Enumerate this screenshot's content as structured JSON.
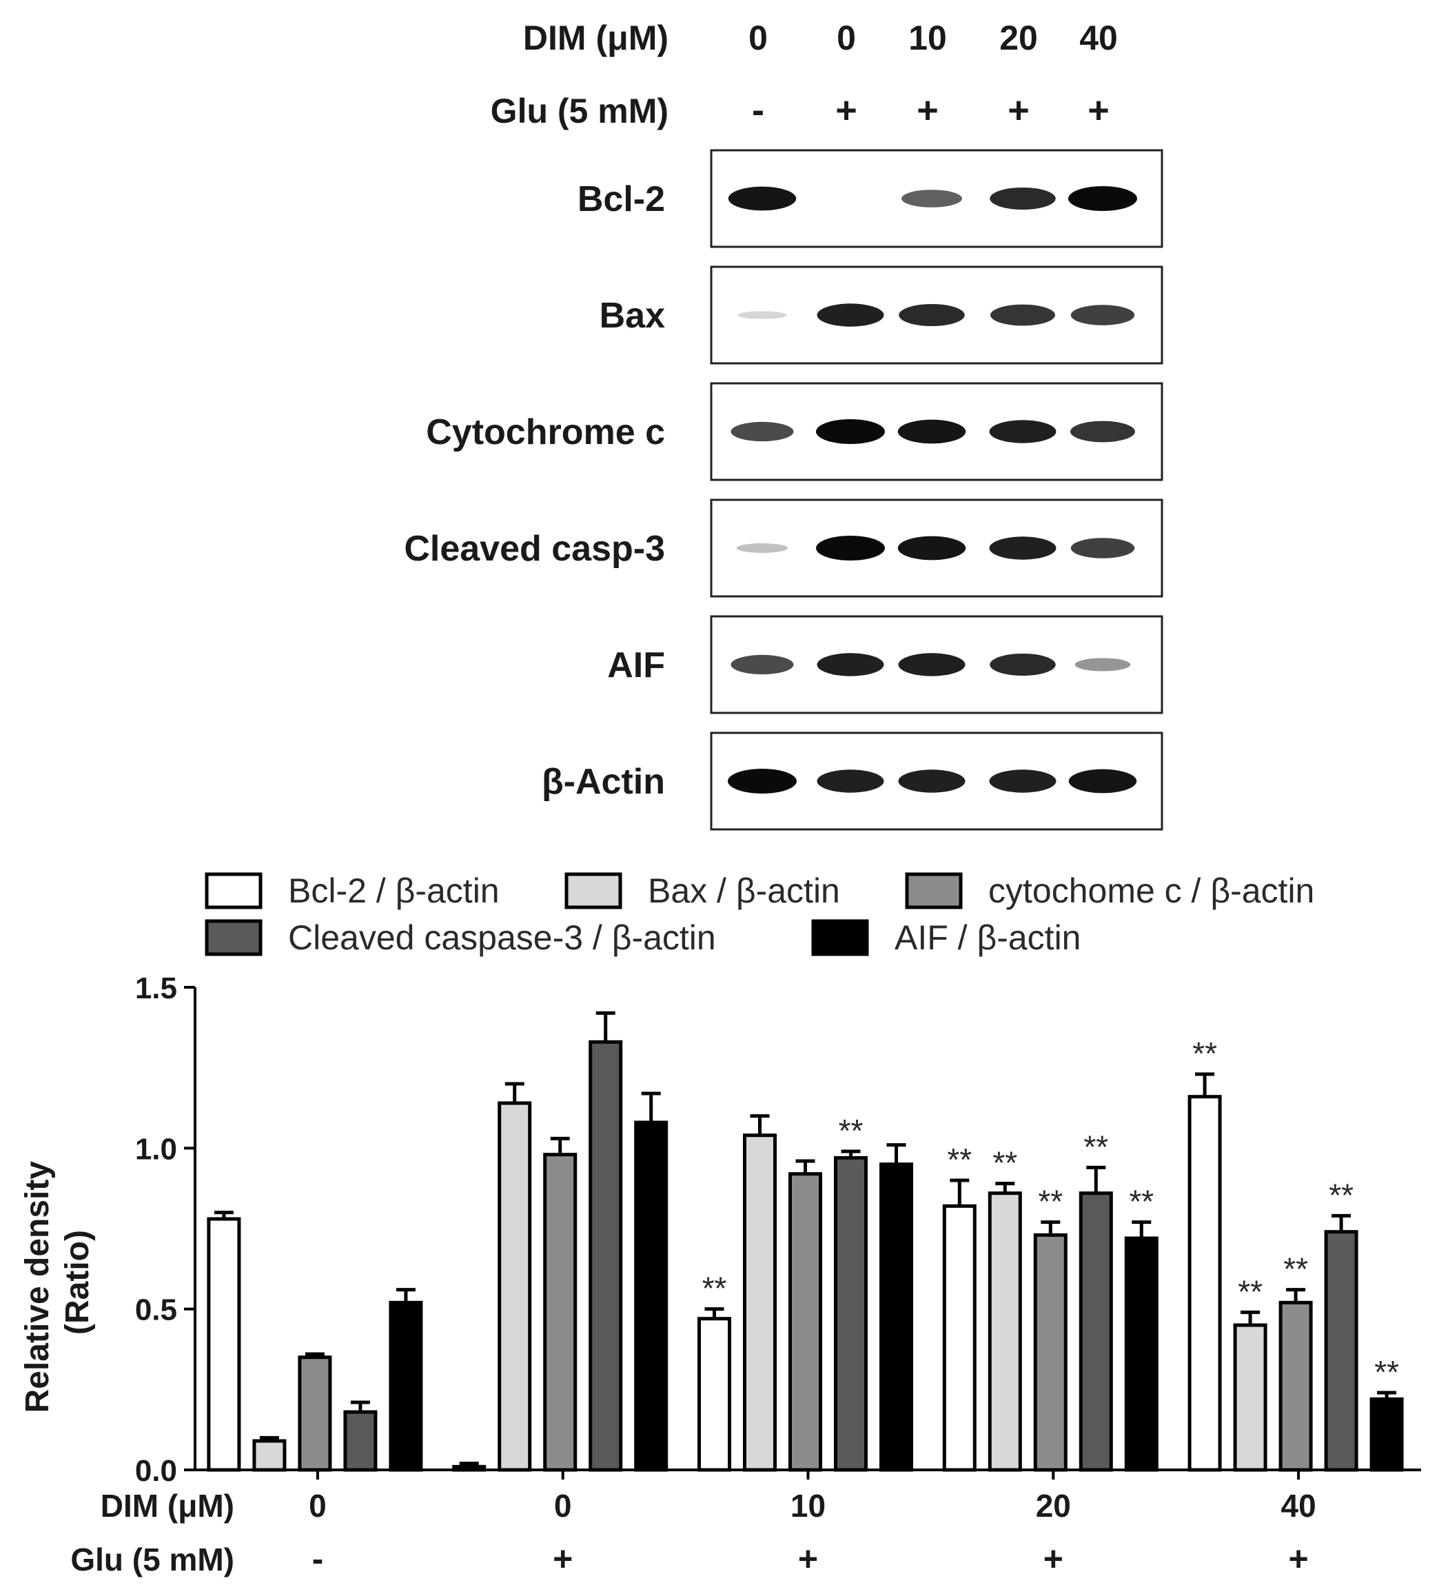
{
  "blot": {
    "dim_label": "DIM (μM)",
    "glu_label": "Glu (5 mM)",
    "dim_values": [
      "0",
      "0",
      "10",
      "20",
      "40"
    ],
    "glu_values": [
      "-",
      "+",
      "+",
      "+",
      "+"
    ],
    "rows": [
      {
        "label": "Bcl-2",
        "intensity": [
          0.95,
          0.0,
          0.6,
          0.85,
          1.0
        ]
      },
      {
        "label": "Bax",
        "intensity": [
          0.05,
          0.9,
          0.85,
          0.8,
          0.75
        ]
      },
      {
        "label": "Cytochrome c",
        "intensity": [
          0.7,
          1.0,
          0.95,
          0.9,
          0.8
        ]
      },
      {
        "label": "Cleaved casp-3",
        "intensity": [
          0.15,
          1.0,
          0.95,
          0.9,
          0.75
        ]
      },
      {
        "label": "AIF",
        "intensity": [
          0.7,
          0.9,
          0.9,
          0.85,
          0.35
        ]
      },
      {
        "label": "β-Actin",
        "intensity": [
          1.0,
          0.9,
          0.9,
          0.9,
          0.95
        ]
      }
    ]
  },
  "chart_data": {
    "type": "bar",
    "title": "",
    "xlabel": "",
    "ylabel": "Relative density\n(Ratio)",
    "ylim": [
      0,
      1.5
    ],
    "yticks": [
      "0.0",
      "0.5",
      "1.0",
      "1.5"
    ],
    "categories": [
      "0",
      "0",
      "10",
      "20",
      "40"
    ],
    "row_labels": {
      "dim": "DIM (μM)",
      "glu": "Glu (5 mM)"
    },
    "glu_values": [
      "-",
      "+",
      "+",
      "+",
      "+"
    ],
    "legend_position": "top",
    "series": [
      {
        "name": "Bcl-2 / β-actin",
        "color": "#ffffff",
        "values": [
          0.78,
          0.01,
          0.47,
          0.82,
          1.16
        ],
        "errors": [
          0.02,
          0.01,
          0.03,
          0.08,
          0.07
        ],
        "stars": [
          "",
          "",
          "**",
          "**",
          "**"
        ]
      },
      {
        "name": "Bax / β-actin",
        "color": "#d8d8d8",
        "values": [
          0.09,
          1.14,
          1.04,
          0.86,
          0.45
        ],
        "errors": [
          0.01,
          0.06,
          0.06,
          0.03,
          0.04
        ],
        "stars": [
          "",
          "",
          "",
          "**",
          "**"
        ]
      },
      {
        "name": "cytochome c / β-actin",
        "color": "#8c8c8c",
        "values": [
          0.35,
          0.98,
          0.92,
          0.73,
          0.52
        ],
        "errors": [
          0.01,
          0.05,
          0.04,
          0.04,
          0.04
        ],
        "stars": [
          "",
          "",
          "",
          "**",
          "**"
        ]
      },
      {
        "name": "Cleaved caspase-3 / β-actin",
        "color": "#5a5a5a",
        "values": [
          0.18,
          1.33,
          0.97,
          0.86,
          0.74
        ],
        "errors": [
          0.03,
          0.09,
          0.02,
          0.08,
          0.05
        ],
        "stars": [
          "",
          "",
          "**",
          "**",
          "**"
        ]
      },
      {
        "name": "AIF / β-actin",
        "color": "#000000",
        "values": [
          0.52,
          1.08,
          0.95,
          0.72,
          0.22
        ],
        "errors": [
          0.04,
          0.09,
          0.06,
          0.05,
          0.02
        ],
        "stars": [
          "",
          "",
          "",
          "**",
          "**"
        ]
      }
    ]
  }
}
